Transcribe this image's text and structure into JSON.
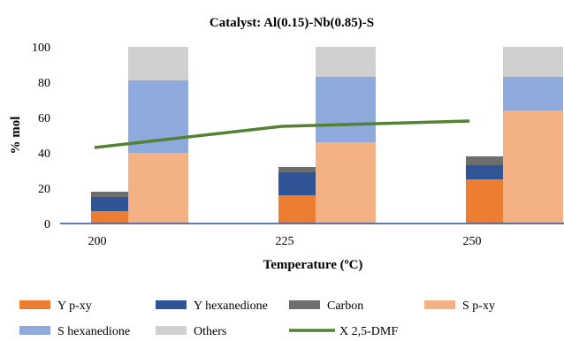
{
  "chart_data": {
    "type": "bar",
    "title": "Catalyst: Al(0.15)-Nb(0.85)-S",
    "xlabel": "Temperature (ºC)",
    "ylabel": "% mol",
    "ylim": [
      0,
      100
    ],
    "yticks": [
      0,
      20,
      40,
      60,
      80,
      100
    ],
    "categories": [
      "200",
      "225",
      "250"
    ],
    "grid": false,
    "legend_position": "bottom",
    "stacks": [
      {
        "stack": "yield",
        "series": [
          {
            "name": "Y p-xy",
            "color": "#ED7D31",
            "values": [
              7,
              16,
              25
            ]
          },
          {
            "name": "Y hexanedione",
            "color": "#2F5597",
            "values": [
              8,
              13,
              8
            ]
          },
          {
            "name": "Carbon",
            "color": "#6E6E6E",
            "values": [
              3,
              3,
              5
            ]
          }
        ]
      },
      {
        "stack": "selectivity",
        "series": [
          {
            "name": "S p-xy",
            "color": "#F4B183",
            "values": [
              40,
              46,
              64
            ]
          },
          {
            "name": "S hexanedione",
            "color": "#8FAADC",
            "values": [
              41,
              37,
              19
            ]
          },
          {
            "name": "Others",
            "color": "#D0D0D0",
            "values": [
              19,
              17,
              17
            ]
          }
        ]
      }
    ],
    "line": {
      "name": "X 2,5-DMF",
      "color": "#548235",
      "values": [
        43,
        55,
        58
      ]
    },
    "legend_order": [
      "Y p-xy",
      "Y hexanedione",
      "Carbon",
      "S p-xy",
      "S hexanedione",
      "Others",
      "X 2,5-DMF"
    ]
  }
}
